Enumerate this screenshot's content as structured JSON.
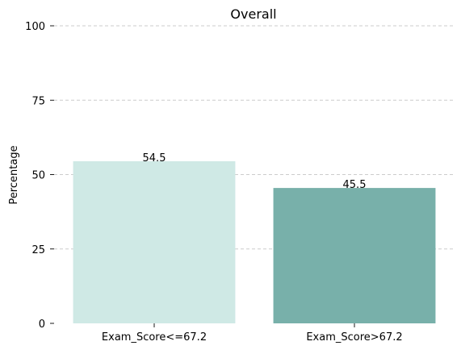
{
  "chart_data": {
    "type": "bar",
    "title": "Overall",
    "xlabel": "",
    "ylabel": "Percentage",
    "categories": [
      "Exam_Score<=67.2",
      "Exam_Score>67.2"
    ],
    "values": [
      54.5,
      45.5
    ],
    "value_labels": [
      "54.5",
      "45.5"
    ],
    "ylim": [
      0,
      100
    ],
    "yticks": [
      0,
      25,
      50,
      75,
      100
    ],
    "ytick_labels": [
      "0",
      "25",
      "50",
      "75",
      "100"
    ],
    "grid": "horizontal dashed",
    "colors": [
      "#cfe9e5",
      "#78b0aa"
    ],
    "grid_color": "#cccccc"
  }
}
